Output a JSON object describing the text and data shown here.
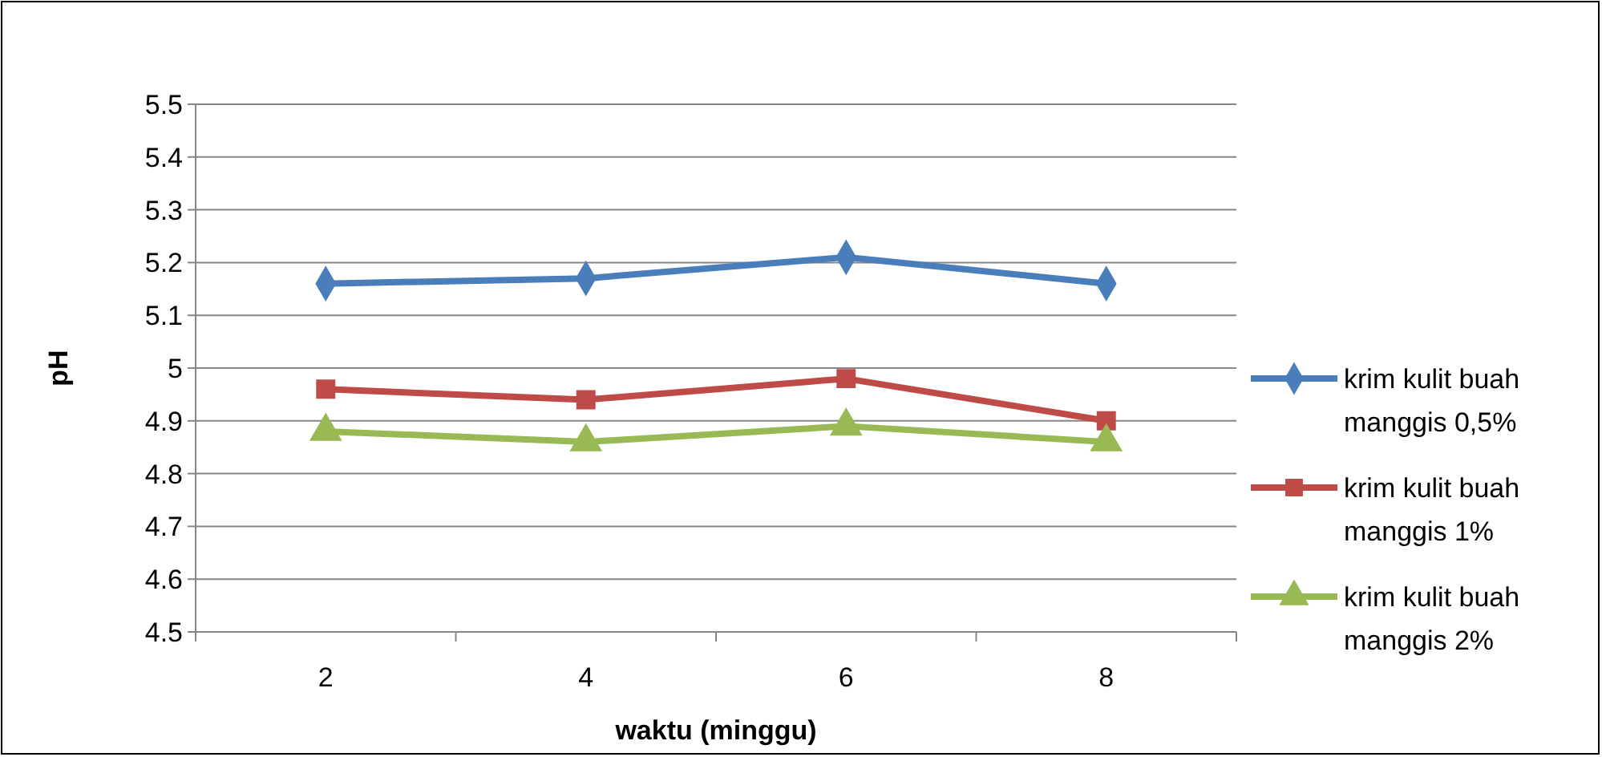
{
  "chart_data": {
    "type": "line",
    "xlabel": "waktu (minggu)",
    "ylabel": "pH",
    "categories": [
      "2",
      "4",
      "6",
      "8"
    ],
    "series": [
      {
        "name": "krim kulit buah manggis 0,5%",
        "color": "#4a7ebb",
        "marker": "diamond",
        "values": [
          5.16,
          5.17,
          5.21,
          5.16
        ]
      },
      {
        "name": "krim kulit buah manggis 1%",
        "color": "#be4b48",
        "marker": "square",
        "values": [
          4.96,
          4.94,
          4.98,
          4.9
        ]
      },
      {
        "name": "krim kulit buah manggis 2%",
        "color": "#98b954",
        "marker": "triangle",
        "values": [
          4.88,
          4.86,
          4.89,
          4.86
        ]
      }
    ],
    "ylim": [
      4.5,
      5.5
    ],
    "yticks": [
      4.5,
      4.6,
      4.7,
      4.8,
      4.9,
      5,
      5.1,
      5.2,
      5.3,
      5.4,
      5.5
    ],
    "grid": "y",
    "legend": "right",
    "line_style": "solid"
  }
}
